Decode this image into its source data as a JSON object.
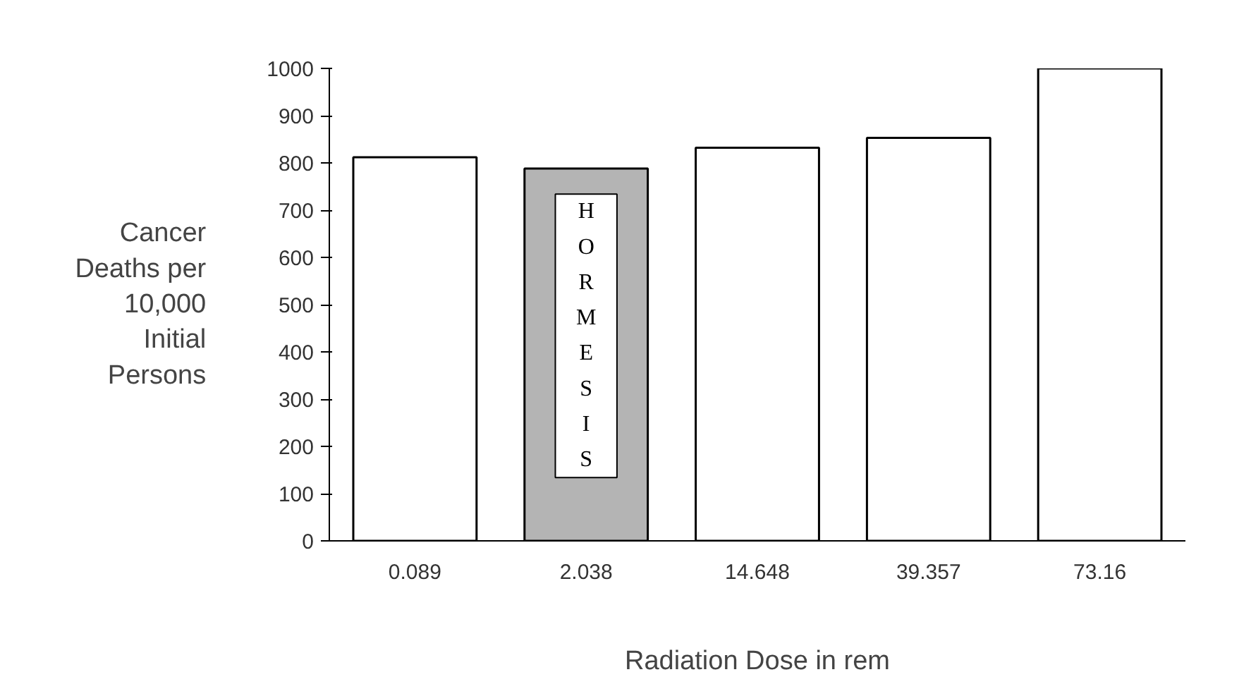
{
  "chart_data": {
    "type": "bar",
    "xlabel": "Radiation Dose in rem",
    "ylabel": "Cancer\nDeaths per\n10,000\nInitial\nPersons",
    "categories": [
      "0.089",
      "2.038",
      "14.648",
      "39.357",
      "73.16"
    ],
    "values": [
      812,
      788,
      832,
      853,
      1000
    ],
    "colors": [
      "#ffffff",
      "#b4b4b4",
      "#ffffff",
      "#ffffff",
      "#ffffff"
    ],
    "ylim": [
      0,
      1000
    ],
    "yticks": [
      0,
      100,
      200,
      300,
      400,
      500,
      600,
      700,
      800,
      900,
      1000
    ],
    "annotations": [
      "HORMESIS"
    ],
    "grid": false
  }
}
